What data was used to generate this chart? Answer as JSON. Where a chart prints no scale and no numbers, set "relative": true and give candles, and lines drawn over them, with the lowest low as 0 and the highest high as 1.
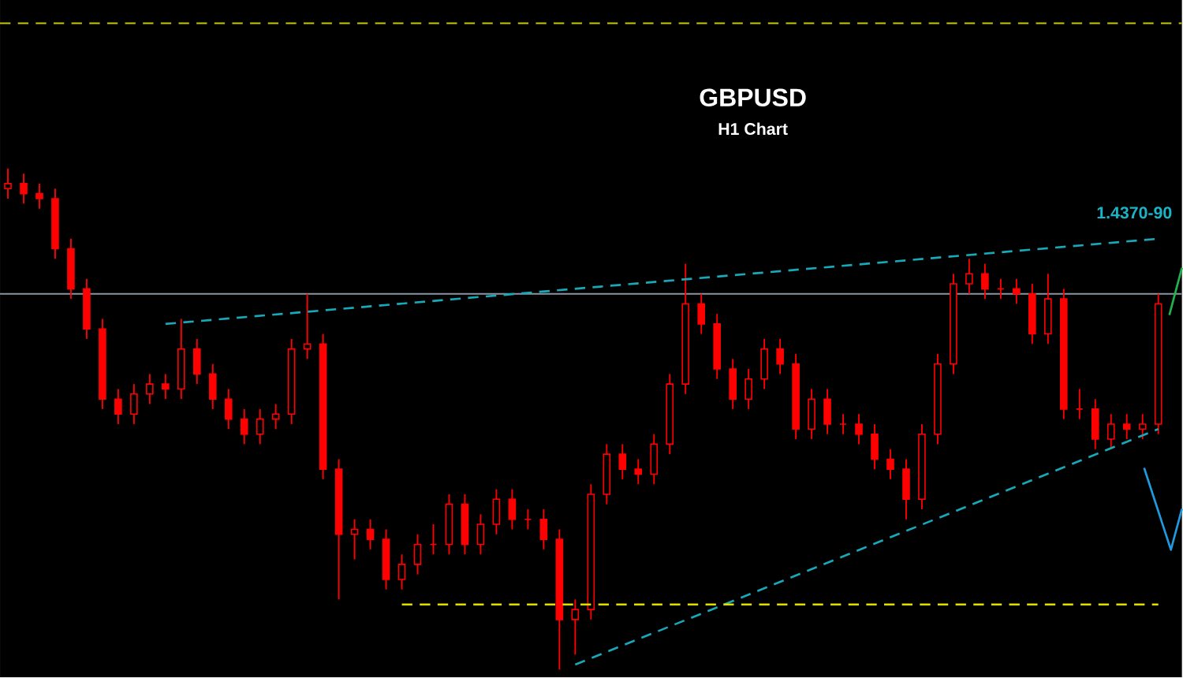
{
  "chart_data": {
    "type": "candlestick",
    "title": "GBPUSD",
    "subtitle": "H1 Chart",
    "relative": true,
    "color": "#ff0000",
    "annotations": [
      "1.4370-90"
    ],
    "categories": [
      null,
      null,
      null,
      null,
      null,
      null,
      null,
      null,
      null,
      null,
      null,
      null,
      null,
      null,
      null,
      null,
      null,
      null,
      null,
      null,
      null,
      null,
      null,
      null,
      null,
      null,
      null,
      null,
      null,
      null,
      null,
      null,
      null,
      null,
      null,
      null,
      null,
      null,
      null,
      null,
      null,
      null,
      null,
      null,
      null,
      null,
      null,
      null,
      null,
      null,
      null,
      null,
      null,
      null,
      null,
      null,
      null,
      null,
      null,
      null,
      null,
      null,
      null,
      null,
      null,
      null,
      null,
      null,
      null,
      null,
      null,
      null,
      null,
      null
    ],
    "ohlc": [
      [
        0.96,
        1.0,
        0.94,
        0.97
      ],
      [
        0.97,
        0.99,
        0.93,
        0.95
      ],
      [
        0.95,
        0.97,
        0.92,
        0.94
      ],
      [
        0.94,
        0.96,
        0.82,
        0.84
      ],
      [
        0.84,
        0.86,
        0.74,
        0.76
      ],
      [
        0.76,
        0.78,
        0.66,
        0.68
      ],
      [
        0.68,
        0.7,
        0.52,
        0.54
      ],
      [
        0.54,
        0.56,
        0.49,
        0.51
      ],
      [
        0.51,
        0.57,
        0.49,
        0.55
      ],
      [
        0.55,
        0.59,
        0.53,
        0.57
      ],
      [
        0.57,
        0.59,
        0.54,
        0.56
      ],
      [
        0.56,
        0.7,
        0.54,
        0.64
      ],
      [
        0.64,
        0.66,
        0.57,
        0.59
      ],
      [
        0.59,
        0.61,
        0.52,
        0.54
      ],
      [
        0.54,
        0.56,
        0.48,
        0.5
      ],
      [
        0.5,
        0.52,
        0.45,
        0.47
      ],
      [
        0.47,
        0.52,
        0.45,
        0.5
      ],
      [
        0.5,
        0.53,
        0.48,
        0.51
      ],
      [
        0.51,
        0.66,
        0.49,
        0.64
      ],
      [
        0.64,
        0.75,
        0.62,
        0.65
      ],
      [
        0.65,
        0.67,
        0.38,
        0.4
      ],
      [
        0.4,
        0.42,
        0.14,
        0.27
      ],
      [
        0.27,
        0.3,
        0.22,
        0.28
      ],
      [
        0.28,
        0.3,
        0.24,
        0.26
      ],
      [
        0.26,
        0.28,
        0.16,
        0.18
      ],
      [
        0.18,
        0.23,
        0.16,
        0.21
      ],
      [
        0.21,
        0.27,
        0.19,
        0.25
      ],
      [
        0.25,
        0.29,
        0.23,
        0.25
      ],
      [
        0.25,
        0.35,
        0.23,
        0.33
      ],
      [
        0.33,
        0.35,
        0.23,
        0.25
      ],
      [
        0.25,
        0.31,
        0.23,
        0.29
      ],
      [
        0.29,
        0.36,
        0.27,
        0.34
      ],
      [
        0.34,
        0.36,
        0.28,
        0.3
      ],
      [
        0.3,
        0.32,
        0.28,
        0.3
      ],
      [
        0.3,
        0.32,
        0.24,
        0.26
      ],
      [
        0.26,
        0.28,
        0.0,
        0.1
      ],
      [
        0.1,
        0.14,
        0.03,
        0.12
      ],
      [
        0.12,
        0.37,
        0.1,
        0.35
      ],
      [
        0.35,
        0.45,
        0.33,
        0.43
      ],
      [
        0.43,
        0.45,
        0.38,
        0.4
      ],
      [
        0.4,
        0.42,
        0.37,
        0.39
      ],
      [
        0.39,
        0.47,
        0.37,
        0.45
      ],
      [
        0.45,
        0.59,
        0.43,
        0.57
      ],
      [
        0.57,
        0.81,
        0.55,
        0.73
      ],
      [
        0.73,
        0.75,
        0.67,
        0.69
      ],
      [
        0.69,
        0.71,
        0.58,
        0.6
      ],
      [
        0.6,
        0.62,
        0.52,
        0.54
      ],
      [
        0.54,
        0.6,
        0.52,
        0.58
      ],
      [
        0.58,
        0.66,
        0.56,
        0.64
      ],
      [
        0.64,
        0.66,
        0.59,
        0.61
      ],
      [
        0.61,
        0.63,
        0.46,
        0.48
      ],
      [
        0.48,
        0.56,
        0.46,
        0.54
      ],
      [
        0.54,
        0.56,
        0.47,
        0.49
      ],
      [
        0.49,
        0.51,
        0.47,
        0.49
      ],
      [
        0.49,
        0.51,
        0.45,
        0.47
      ],
      [
        0.47,
        0.49,
        0.4,
        0.42
      ],
      [
        0.42,
        0.44,
        0.38,
        0.4
      ],
      [
        0.4,
        0.42,
        0.3,
        0.34
      ],
      [
        0.34,
        0.49,
        0.32,
        0.47
      ],
      [
        0.47,
        0.63,
        0.45,
        0.61
      ],
      [
        0.61,
        0.79,
        0.59,
        0.77
      ],
      [
        0.77,
        0.82,
        0.75,
        0.79
      ],
      [
        0.79,
        0.81,
        0.74,
        0.76
      ],
      [
        0.76,
        0.78,
        0.74,
        0.76
      ],
      [
        0.76,
        0.78,
        0.73,
        0.75
      ],
      [
        0.75,
        0.77,
        0.65,
        0.67
      ],
      [
        0.67,
        0.79,
        0.65,
        0.74
      ],
      [
        0.74,
        0.76,
        0.5,
        0.52
      ],
      [
        0.52,
        0.56,
        0.5,
        0.52
      ],
      [
        0.52,
        0.54,
        0.44,
        0.46
      ],
      [
        0.46,
        0.51,
        0.44,
        0.49
      ],
      [
        0.49,
        0.51,
        0.46,
        0.48
      ],
      [
        0.48,
        0.51,
        0.46,
        0.49
      ],
      [
        0.49,
        0.75,
        0.47,
        0.73
      ]
    ],
    "series": [
      {
        "type": "line",
        "color": "#18a8b8",
        "line_style": "dashed",
        "values": [
          null,
          null,
          null,
          null,
          null,
          null,
          null,
          null,
          null,
          null,
          0.69,
          null,
          null,
          null,
          null,
          null,
          null,
          null,
          null,
          null,
          null,
          null,
          null,
          null,
          null,
          null,
          null,
          null,
          null,
          null,
          null,
          null,
          null,
          null,
          null,
          null,
          null,
          null,
          null,
          null,
          null,
          null,
          null,
          null,
          null,
          null,
          null,
          null,
          null,
          null,
          null,
          null,
          null,
          null,
          null,
          null,
          null,
          null,
          null,
          null,
          null,
          null,
          null,
          null,
          null,
          null,
          null,
          null,
          null,
          null,
          null,
          null,
          null,
          0.86
        ]
      },
      {
        "type": "line",
        "color": "#18a8b8",
        "line_style": "dashed",
        "values": [
          null,
          null,
          null,
          null,
          null,
          null,
          null,
          null,
          null,
          null,
          null,
          null,
          null,
          null,
          null,
          null,
          null,
          null,
          null,
          null,
          null,
          null,
          null,
          null,
          null,
          null,
          null,
          null,
          null,
          null,
          null,
          null,
          null,
          null,
          null,
          null,
          0.01,
          null,
          null,
          null,
          null,
          null,
          null,
          null,
          null,
          null,
          null,
          null,
          null,
          null,
          null,
          null,
          null,
          null,
          null,
          null,
          null,
          null,
          null,
          null,
          null,
          null,
          null,
          null,
          null,
          null,
          null,
          null,
          null,
          null,
          null,
          null,
          null,
          0.48
        ]
      },
      {
        "type": "line",
        "color": "#e0e000",
        "line_style": "dashed",
        "values": [
          null,
          null,
          null,
          null,
          null,
          null,
          null,
          null,
          null,
          null,
          null,
          null,
          null,
          null,
          null,
          null,
          null,
          null,
          null,
          null,
          null,
          null,
          null,
          null,
          null,
          0.13,
          null,
          null,
          null,
          null,
          null,
          null,
          null,
          null,
          null,
          null,
          null,
          null,
          null,
          null,
          null,
          null,
          null,
          null,
          null,
          null,
          null,
          null,
          null,
          null,
          null,
          null,
          null,
          null,
          null,
          null,
          null,
          null,
          null,
          null,
          null,
          null,
          null,
          null,
          null,
          null,
          null,
          null,
          null,
          null,
          null,
          null,
          null,
          0.13
        ]
      }
    ],
    "ref_lines": [
      {
        "axis": "y",
        "value": 0.75,
        "color": "#8a96a2",
        "line_style": "solid"
      },
      {
        "axis": "y",
        "value": 1.29,
        "color": "#c8c800",
        "line_style": "dashed"
      }
    ]
  }
}
